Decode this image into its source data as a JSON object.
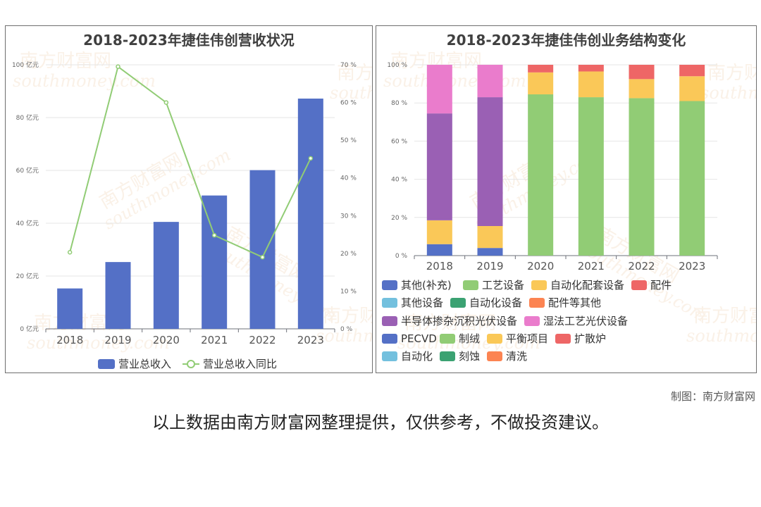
{
  "chart_data": [
    {
      "type": "bar",
      "title": "2018-2023年捷佳伟创营收状况",
      "categories": [
        "2018",
        "2019",
        "2020",
        "2021",
        "2022",
        "2023"
      ],
      "series": [
        {
          "name": "营业总收入",
          "type": "bar",
          "axis": "left",
          "color": "#5470c6",
          "values": [
            15.3,
            25.3,
            40.5,
            50.5,
            60.1,
            87.2
          ]
        },
        {
          "name": "营业总收入同比",
          "type": "line",
          "axis": "right",
          "color": "#91cc75",
          "values": [
            20.3,
            69.5,
            60.0,
            24.8,
            19.0,
            45.2
          ]
        }
      ],
      "y_left": {
        "ylim": [
          0,
          100
        ],
        "ticks": [
          0,
          20,
          40,
          60,
          80,
          100
        ],
        "unit": "亿元"
      },
      "y_right": {
        "ylim": [
          0,
          70
        ],
        "ticks": [
          0,
          10,
          20,
          30,
          40,
          50,
          60,
          70
        ],
        "unit": "%"
      },
      "grid": true,
      "legend_position": "bottom"
    },
    {
      "type": "bar",
      "stacked": true,
      "title": "2018-2023年捷佳伟创业务结构变化",
      "categories": [
        "2018",
        "2019",
        "2020",
        "2021",
        "2022",
        "2023"
      ],
      "series": [
        {
          "name": "其他(补充)",
          "color": "#5470c6",
          "values": [
            6,
            4,
            0,
            0,
            0,
            0
          ]
        },
        {
          "name": "工艺设备",
          "color": "#91cc75",
          "values": [
            0,
            0,
            84.5,
            83,
            82.5,
            81
          ]
        },
        {
          "name": "自动化配套设备",
          "color": "#fac858",
          "values": [
            12.5,
            11.5,
            11.5,
            13.5,
            10,
            13
          ]
        },
        {
          "name": "配件",
          "color": "#ee6666",
          "values": [
            0,
            0,
            4,
            3.5,
            7.5,
            6
          ]
        },
        {
          "name": "其他设备",
          "color": "#73c0de",
          "values": [
            0,
            0,
            0,
            0,
            0,
            0
          ]
        },
        {
          "name": "自动化设备",
          "color": "#3ba272",
          "values": [
            0,
            0,
            0,
            0,
            0,
            0
          ]
        },
        {
          "name": "配件等其他",
          "color": "#fc8452",
          "values": [
            0,
            0,
            0,
            0,
            0,
            0
          ]
        },
        {
          "name": "半导体掺杂沉积光伏设备",
          "color": "#9a60b4",
          "values": [
            56,
            67.5,
            0,
            0,
            0,
            0
          ]
        },
        {
          "name": "湿法工艺光伏设备",
          "color": "#ea7ccc",
          "values": [
            25.5,
            17,
            0,
            0,
            0,
            0
          ]
        },
        {
          "name": "PECVD",
          "color": "#5470c6",
          "values": [
            0,
            0,
            0,
            0,
            0,
            0
          ]
        },
        {
          "name": "制绒",
          "color": "#91cc75",
          "values": [
            0,
            0,
            0,
            0,
            0,
            0
          ]
        },
        {
          "name": "平衡项目",
          "color": "#fac858",
          "values": [
            0,
            0,
            0,
            0,
            0,
            0
          ]
        },
        {
          "name": "扩散炉",
          "color": "#ee6666",
          "values": [
            0,
            0,
            0,
            0,
            0,
            0
          ]
        },
        {
          "name": "自动化",
          "color": "#73c0de",
          "values": [
            0,
            0,
            0,
            0,
            0,
            0
          ]
        },
        {
          "name": "刻蚀",
          "color": "#3ba272",
          "values": [
            0,
            0,
            0,
            0,
            0,
            0
          ]
        },
        {
          "name": "清洗",
          "color": "#fc8452",
          "values": [
            0,
            0,
            0,
            0,
            0,
            0
          ]
        }
      ],
      "ylim": [
        0,
        100
      ],
      "ticks": [
        0,
        20,
        40,
        60,
        80,
        100
      ],
      "unit": "%",
      "legend_position": "bottom"
    }
  ],
  "watermark": {
    "cn": "南方财富网",
    "en": "southmoney.com"
  },
  "footer": {
    "credit": "制图：南方财富网",
    "disclaimer": "以上数据由南方财富网整理提供，仅供参考，不做投资建议。"
  }
}
